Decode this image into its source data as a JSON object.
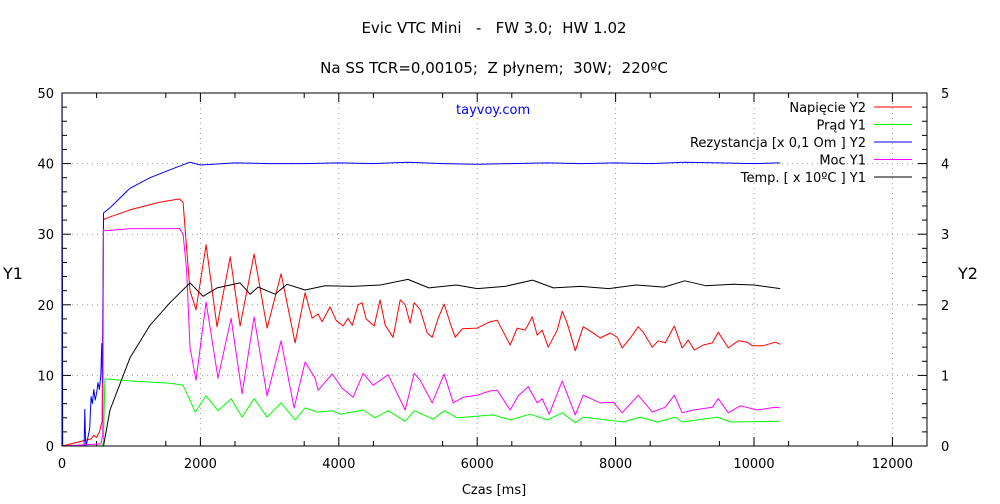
{
  "chart_data": {
    "type": "line",
    "title": "Evic VTC Mini   -   FW 3.0;  HW 1.02",
    "subtitle": "Na SS TCR=0,00105;  Z płynem;  30W;  220ºC",
    "annotation": "tayvoy.com",
    "annotation_color": "#0000ff",
    "annotation_position": [
      6230,
      47.6
    ],
    "xlabel": "Czas [ms]",
    "ylabel": "Y1",
    "y2label": "Y2",
    "xlim": [
      0,
      12500
    ],
    "ylim": [
      0,
      50
    ],
    "y2lim": [
      0,
      5
    ],
    "xticks": [
      "0",
      "2000",
      "4000",
      "6000",
      "8000",
      "10000",
      "12000"
    ],
    "yticks": [
      "0",
      "10",
      "20",
      "30",
      "40",
      "50"
    ],
    "y2ticks": [
      "0",
      "1",
      "2",
      "3",
      "4",
      "5"
    ],
    "grid": true,
    "legend_position": "top-right",
    "series": [
      {
        "name": "Napięcie Y2",
        "axis": "y2",
        "color": "#ff0000",
        "x": [
          0,
          420,
          460,
          500,
          540,
          580,
          600,
          620,
          1000,
          1400,
          1700,
          1750,
          1800,
          1850,
          1937,
          2082,
          2240,
          2430,
          2573,
          2776,
          2964,
          3166,
          3369,
          3513,
          3614,
          3700,
          3759,
          3874,
          3961,
          4062,
          4135,
          4193,
          4279,
          4337,
          4395,
          4511,
          4597,
          4670,
          4785,
          4887,
          4959,
          5031,
          5089,
          5176,
          5277,
          5349,
          5436,
          5523,
          5610,
          5682,
          5783,
          6000,
          6188,
          6289,
          6477,
          6578,
          6694,
          6795,
          6867,
          6940,
          7026,
          7156,
          7228,
          7301,
          7417,
          7532,
          7662,
          7778,
          7922,
          8024,
          8096,
          8212,
          8327,
          8400,
          8530,
          8617,
          8718,
          8848,
          8963,
          9050,
          9137,
          9267,
          9397,
          9484,
          9628,
          9773,
          9903,
          9976,
          10134,
          10308,
          10380
        ],
        "y": [
          0,
          0.1,
          0.15,
          0.12,
          0.2,
          0.35,
          3.2,
          3.22,
          3.35,
          3.45,
          3.5,
          3.45,
          2.8,
          2.2,
          1.93,
          2.85,
          1.69,
          2.68,
          1.7,
          2.72,
          1.67,
          2.44,
          1.46,
          2.17,
          1.81,
          1.87,
          1.76,
          1.97,
          1.78,
          1.7,
          1.81,
          1.71,
          2.0,
          2.03,
          1.8,
          1.7,
          2.07,
          1.71,
          1.54,
          2.07,
          2.0,
          1.74,
          2.03,
          1.93,
          1.6,
          1.54,
          1.81,
          2.01,
          1.74,
          1.54,
          1.66,
          1.67,
          1.76,
          1.78,
          1.43,
          1.67,
          1.64,
          1.83,
          1.57,
          1.64,
          1.4,
          1.64,
          1.91,
          1.74,
          1.35,
          1.69,
          1.61,
          1.53,
          1.6,
          1.54,
          1.39,
          1.53,
          1.69,
          1.61,
          1.4,
          1.49,
          1.46,
          1.7,
          1.39,
          1.5,
          1.36,
          1.43,
          1.46,
          1.61,
          1.39,
          1.49,
          1.47,
          1.42,
          1.42,
          1.47,
          1.44
        ]
      },
      {
        "name": "Prąd Y1",
        "axis": "y1",
        "color": "#00ff00",
        "x": [
          0,
          580,
          600,
          620,
          1000,
          1561,
          1750,
          1850,
          1923,
          2082,
          2255,
          2443,
          2602,
          2776,
          2964,
          3166,
          3369,
          3513,
          3687,
          3904,
          4019,
          4352,
          4525,
          4713,
          4959,
          5089,
          5364,
          5523,
          5711,
          6231,
          6477,
          6766,
          7012,
          7228,
          7417,
          7532,
          8111,
          8356,
          8602,
          8862,
          8963,
          9469,
          9657,
          10380
        ],
        "y": [
          0,
          0,
          0.5,
          9.5,
          9.2,
          8.9,
          8.6,
          6.5,
          4.8,
          7.1,
          5.0,
          6.7,
          4.1,
          6.7,
          4.1,
          6.1,
          3.7,
          5.4,
          4.8,
          5.0,
          4.5,
          5.1,
          4.0,
          5.0,
          3.5,
          5.0,
          3.8,
          5.0,
          4.0,
          4.4,
          3.7,
          4.5,
          3.7,
          4.7,
          3.3,
          4.1,
          3.4,
          4.1,
          3.4,
          4.1,
          3.4,
          4.1,
          3.4,
          3.5
        ]
      },
      {
        "name": "Rezystancja [x 0,1 Om ] Y2",
        "axis": "y2",
        "color": "#0000ff",
        "x": [
          0,
          1,
          10,
          20,
          320,
          330,
          340,
          350,
          400,
          420,
          440,
          460,
          480,
          500,
          520,
          540,
          560,
          575,
          585,
          600,
          700,
          983,
          1272,
          1634,
          1850,
          2000,
          2500,
          3000,
          3500,
          4000,
          4500,
          5000,
          5500,
          6000,
          6500,
          7000,
          7500,
          8000,
          8500,
          9000,
          9500,
          10000,
          10380
        ],
        "y": [
          4.3,
          5.0,
          0,
          0,
          0,
          0.52,
          0.1,
          0,
          0.25,
          0.7,
          0.6,
          0.8,
          0.65,
          0.75,
          0.9,
          0.8,
          1.0,
          1.45,
          0.9,
          3.3,
          3.38,
          3.65,
          3.8,
          3.94,
          4.02,
          3.98,
          4.01,
          4.0,
          4.0,
          4.01,
          4.0,
          4.02,
          4.0,
          3.99,
          4.0,
          4.01,
          4.0,
          4.01,
          4.0,
          4.02,
          4.01,
          4.0,
          4.01
        ]
      },
      {
        "name": "Moc Y1",
        "axis": "y1",
        "color": "#ff00ff",
        "x": [
          0,
          560,
          590,
          600,
          620,
          1000,
          1700,
          1750,
          1800,
          1850,
          1937,
          2082,
          2255,
          2443,
          2602,
          2776,
          2964,
          3166,
          3354,
          3513,
          3658,
          3701,
          3904,
          4048,
          4207,
          4352,
          4496,
          4713,
          4959,
          5089,
          5176,
          5349,
          5523,
          5653,
          5797,
          6000,
          6188,
          6289,
          6477,
          6593,
          6737,
          6867,
          6940,
          7040,
          7228,
          7417,
          7532,
          7778,
          7966,
          8096,
          8327,
          8530,
          8718,
          8848,
          8963,
          9123,
          9397,
          9484,
          9628,
          9802,
          10048,
          10308,
          10380
        ],
        "y": [
          0,
          0.3,
          1.5,
          30.7,
          30.5,
          30.8,
          30.8,
          30.0,
          25.0,
          14.0,
          9.3,
          20.4,
          9.6,
          18.1,
          7.4,
          18.3,
          7.1,
          14.9,
          5.4,
          11.9,
          9.6,
          7.9,
          10.2,
          8.2,
          6.9,
          10.3,
          8.6,
          10.1,
          5.1,
          10.3,
          9.3,
          6.1,
          10.2,
          6.1,
          6.9,
          7.2,
          7.8,
          7.9,
          5.1,
          7.1,
          8.4,
          6.1,
          6.7,
          4.5,
          9.2,
          4.4,
          7.2,
          6.1,
          6.2,
          4.7,
          7.2,
          4.8,
          5.5,
          7.2,
          4.7,
          5.1,
          5.5,
          6.7,
          4.7,
          5.7,
          5.1,
          5.5,
          5.4
        ]
      },
      {
        "name": "Temp. [ x 10ºC ]  Y1",
        "axis": "y1",
        "color": "#000000",
        "x": [
          0,
          600,
          694,
          983,
          1272,
          1561,
          1850,
          2038,
          2241,
          2573,
          2718,
          2834,
          3079,
          3253,
          3513,
          3800,
          4200,
          4600,
          5000,
          5300,
          5700,
          6000,
          6400,
          6800,
          7100,
          7500,
          7900,
          8300,
          8700,
          9000,
          9300,
          9700,
          10000,
          10380
        ],
        "y": [
          0,
          0,
          5.1,
          12.5,
          17.1,
          20.3,
          23.1,
          21.2,
          22.4,
          23.1,
          21.5,
          22.5,
          21.5,
          22.9,
          22.1,
          22.7,
          22.6,
          22.8,
          23.6,
          22.4,
          22.8,
          22.3,
          22.6,
          23.5,
          22.4,
          22.6,
          22.3,
          22.8,
          22.5,
          23.4,
          22.7,
          22.9,
          22.8,
          22.3
        ]
      }
    ]
  }
}
